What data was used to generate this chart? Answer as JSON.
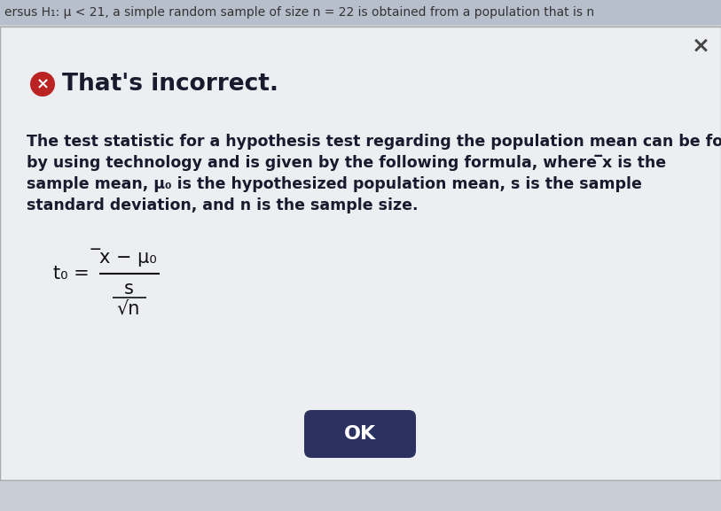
{
  "bg_color": "#c8cdd6",
  "dialog_bg": "#edeef2",
  "top_bar_color": "#b8bfcc",
  "top_bar_text": "ersus H₁: μ < 21, a simple random sample of size n = 22 is obtained from a population that is n",
  "top_bar_text_color": "#333333",
  "close_x_color": "#444444",
  "close_x_text": "×",
  "incorrect_icon_color": "#bb2222",
  "incorrect_text": "That's incorrect.",
  "incorrect_text_color": "#1a1a2e",
  "incorrect_fontsize": 19,
  "body_text_line1": "The test statistic for a hypothesis test regarding the population mean can be found",
  "body_text_line2": "by using technology and is given by the following formula, where ̅x is the",
  "body_text_line3": "sample mean, μ₀ is the hypothesized population mean, s is the sample",
  "body_text_line4": "standard deviation, and n is the sample size.",
  "body_text_color": "#1a1a2e",
  "body_fontsize": 12.5,
  "formula_t0": "t₀ =",
  "formula_numerator": "̅x − μ₀",
  "formula_denominator_top": "s",
  "formula_denominator_bottom": "√n",
  "formula_color": "#111111",
  "formula_fontsize": 15,
  "ok_button_color": "#2b3260",
  "ok_button_text": "OK",
  "ok_button_text_color": "#ffffff",
  "ok_button_fontsize": 16,
  "figsize": [
    8.13,
    5.77
  ],
  "dpi": 100
}
